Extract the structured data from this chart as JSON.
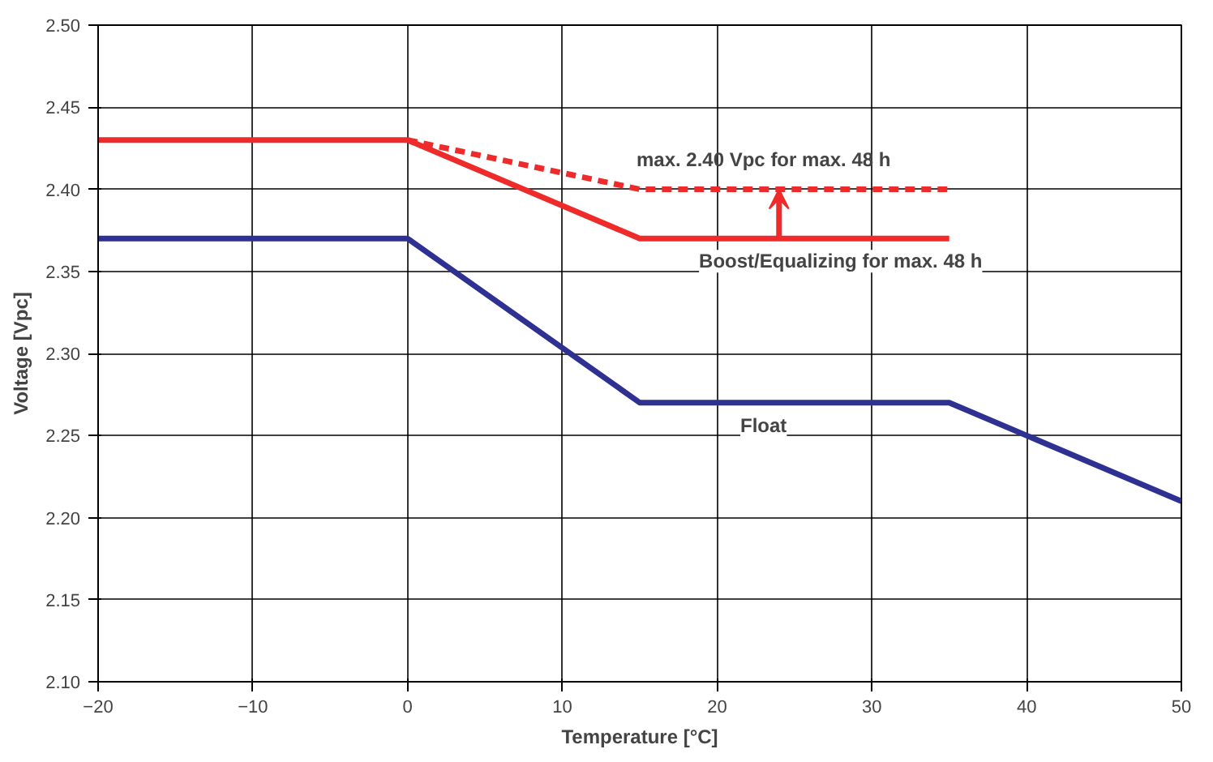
{
  "chart_data": {
    "type": "line",
    "xlabel": "Temperature [°C]",
    "ylabel": "Voltage [Vpc]",
    "xlim": [
      -20,
      50
    ],
    "ylim": [
      2.1,
      2.5
    ],
    "xticks": [
      -20,
      -10,
      0,
      10,
      20,
      30,
      40,
      50
    ],
    "yticks": [
      {
        "value": 2.1,
        "label": "2.10"
      },
      {
        "value": 2.15,
        "label": "2.15"
      },
      {
        "value": 2.2,
        "label": "2.20"
      },
      {
        "value": 2.25,
        "label": "2.25"
      },
      {
        "value": 2.3,
        "label": "2.30"
      },
      {
        "value": 2.35,
        "label": "2.35"
      },
      {
        "value": 2.4,
        "label": "2.40"
      },
      {
        "value": 2.45,
        "label": "2.45"
      },
      {
        "value": 2.5,
        "label": "2.50"
      }
    ],
    "grid": true,
    "marker": "none",
    "series": [
      {
        "color": "#ee2a2a",
        "x": [
          -20,
          0,
          15,
          35
        ],
        "values": [
          2.43,
          2.43,
          2.37,
          2.37
        ],
        "line_style": "solid"
      },
      {
        "color": "#ee2a2a",
        "x": [
          0,
          15,
          35
        ],
        "values": [
          2.43,
          2.4,
          2.4
        ],
        "line_style": "dashed"
      },
      {
        "color": "#2e3192",
        "x": [
          -20,
          0,
          15,
          35,
          50
        ],
        "values": [
          2.37,
          2.37,
          2.27,
          2.27,
          2.21
        ],
        "line_style": "solid"
      }
    ],
    "annotations": [
      "max. 2.40 Vpc for max. 48 h",
      {
        "text": "Boost/Equalizing for max. 48 h",
        "x": 24,
        "y": 2.37
      },
      "Float"
    ]
  }
}
